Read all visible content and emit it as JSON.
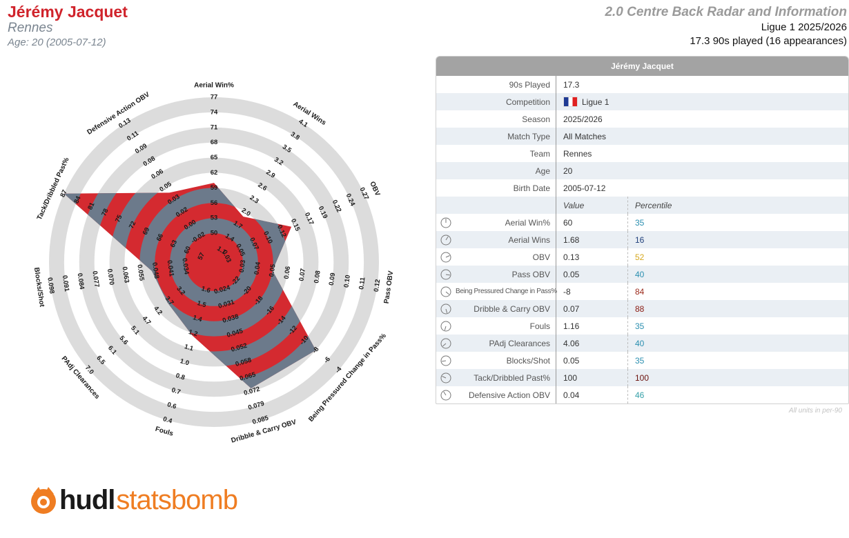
{
  "header": {
    "player_name": "Jérémy Jacquet",
    "team": "Rennes",
    "age_line": "Age: 20 (2005-07-12)",
    "report_title": "2.0 Centre Back Radar and Information",
    "competition_line": "Ligue 1 2025/2026",
    "played_line": "17.3 90s played (16 appearances)"
  },
  "table": {
    "title": "Jérémy Jacquet",
    "info_rows": [
      {
        "label": "90s Played",
        "value": "17.3"
      },
      {
        "label": "Competition",
        "value": "Ligue 1"
      },
      {
        "label": "Season",
        "value": "2025/2026"
      },
      {
        "label": "Match Type",
        "value": "All Matches"
      },
      {
        "label": "Team",
        "value": "Rennes"
      },
      {
        "label": "Age",
        "value": "20"
      },
      {
        "label": "Birth Date",
        "value": "2005-07-12"
      }
    ],
    "value_header": "Value",
    "percentile_header": "Percentile",
    "metric_rows": [
      {
        "label": "Aerial Win%",
        "value": "60",
        "percentile": "35",
        "color": "#2b8fb0"
      },
      {
        "label": "Aerial Wins",
        "value": "1.68",
        "percentile": "16",
        "color": "#1f3f7a"
      },
      {
        "label": "OBV",
        "value": "0.13",
        "percentile": "52",
        "color": "#d6a81f"
      },
      {
        "label": "Pass OBV",
        "value": "0.05",
        "percentile": "40",
        "color": "#2b8fb0"
      },
      {
        "label": "Being Pressured Change in Pass%",
        "value": "-8",
        "percentile": "84",
        "color": "#9c2a1c"
      },
      {
        "label": "Dribble & Carry OBV",
        "value": "0.07",
        "percentile": "88",
        "color": "#8a1a10"
      },
      {
        "label": "Fouls",
        "value": "1.16",
        "percentile": "35",
        "color": "#2b8fb0"
      },
      {
        "label": "PAdj Clearances",
        "value": "4.06",
        "percentile": "40",
        "color": "#2b8fb0"
      },
      {
        "label": "Blocks/Shot",
        "value": "0.05",
        "percentile": "35",
        "color": "#2b8fb0"
      },
      {
        "label": "Tack/Dribbled Past%",
        "value": "100",
        "percentile": "100",
        "color": "#6a0f0a"
      },
      {
        "label": "Defensive Action OBV",
        "value": "0.04",
        "percentile": "46",
        "color": "#35a0a8"
      }
    ],
    "footnote": "All units in per-90"
  },
  "chart_data": {
    "type": "radar",
    "series_name": "Jérémy Jacquet",
    "axes": [
      {
        "label": "Aerial Win%",
        "ticks": [
          "50",
          "53",
          "56",
          "59",
          "62",
          "65",
          "68",
          "71",
          "74",
          "77"
        ],
        "min": 47,
        "max": 77,
        "value": 60
      },
      {
        "label": "Aerial Wins",
        "ticks": [
          "1.1",
          "1.4",
          "1.7",
          "2.0",
          "2.3",
          "2.6",
          "2.9",
          "3.2",
          "3.5",
          "3.8",
          "4.1"
        ],
        "min": 0.8,
        "max": 4.1,
        "value": 1.68
      },
      {
        "label": "OBV",
        "ticks": [
          "0.03",
          "0.05",
          "0.07",
          "0.10",
          "0.12",
          "0.15",
          "0.17",
          "0.19",
          "0.22",
          "0.24",
          "0.27"
        ],
        "min": 0.005,
        "max": 0.27,
        "value": 0.13
      },
      {
        "label": "Pass OBV",
        "ticks": [
          "0.03",
          "0.04",
          "0.05",
          "0.06",
          "0.07",
          "0.08",
          "0.09",
          "0.10",
          "0.11",
          "0.12"
        ],
        "min": 0.02,
        "max": 0.12,
        "value": 0.05
      },
      {
        "label": "Being Pressured Change in Pass%",
        "ticks": [
          "-22",
          "-20",
          "-18",
          "-16",
          "-14",
          "-12",
          "-10",
          "-8",
          "-6",
          "-4"
        ],
        "min": -24,
        "max": -4,
        "value": -8
      },
      {
        "label": "Dribble & Carry OBV",
        "ticks": [
          "0.024",
          "0.031",
          "0.038",
          "0.045",
          "0.052",
          "0.058",
          "0.065",
          "0.072",
          "0.079",
          "0.085"
        ],
        "min": 0.017,
        "max": 0.085,
        "value": 0.07
      },
      {
        "label": "Fouls",
        "ticks": [
          "1.6",
          "1.5",
          "1.4",
          "1.2",
          "1.1",
          "1.0",
          "0.8",
          "0.7",
          "0.6",
          "0.4"
        ],
        "min": 1.7,
        "max": 0.4,
        "value": 1.16
      },
      {
        "label": "PAdj Clearances",
        "ticks": [
          "3.2",
          "3.7",
          "4.2",
          "4.7",
          "5.1",
          "5.6",
          "6.1",
          "6.5",
          "7.0"
        ],
        "min": 2.7,
        "max": 7.0,
        "value": 4.06
      },
      {
        "label": "Blocks/Shot",
        "ticks": [
          "0.034",
          "0.041",
          "0.048",
          "0.055",
          "0.063",
          "0.070",
          "0.077",
          "0.084",
          "0.091",
          "0.098"
        ],
        "min": 0.027,
        "max": 0.098,
        "value": 0.05
      },
      {
        "label": "Tack/Dribbled Past%",
        "ticks": [
          "57",
          "60",
          "63",
          "66",
          "69",
          "72",
          "75",
          "78",
          "81",
          "84",
          "87"
        ],
        "min": 54,
        "max": 87,
        "value": 100
      },
      {
        "label": "Defensive Action OBV",
        "ticks": [
          "-0.02",
          "0.00",
          "0.02",
          "0.03",
          "0.05",
          "0.06",
          "0.08",
          "0.09",
          "0.11",
          "0.13"
        ],
        "min": -0.035,
        "max": 0.13,
        "value": 0.04
      }
    ],
    "colors": {
      "ring": "#dcdcdc",
      "fill": "#d42a30",
      "overlay": "#6c7a8b"
    },
    "grid": true,
    "legend": "none"
  },
  "logo": {
    "word1": "hudl",
    "word2": "statsbomb"
  }
}
